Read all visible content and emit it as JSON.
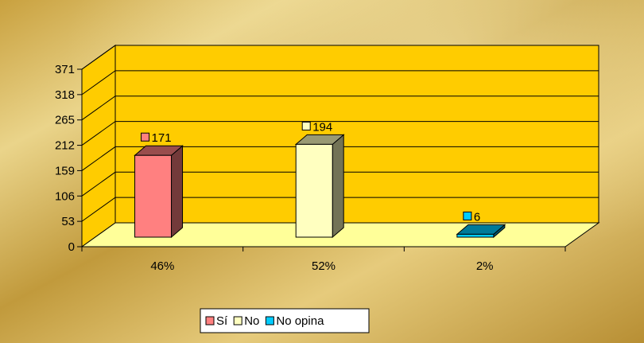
{
  "chart_data": {
    "type": "bar",
    "style": "3d-column",
    "categories": [
      "46%",
      "52%",
      "2%"
    ],
    "series": [
      {
        "name": "Sí",
        "category": "46%",
        "value": 171,
        "color": "#ff8080"
      },
      {
        "name": "No",
        "category": "52%",
        "value": 194,
        "color": "#ffffc0"
      },
      {
        "name": "No opina",
        "category": "2%",
        "value": 6,
        "color": "#00ccff"
      }
    ],
    "yticks": [
      0,
      53,
      106,
      159,
      212,
      265,
      318,
      371
    ],
    "ylim": [
      0,
      371
    ],
    "grid": true,
    "legend_position": "bottom",
    "colors": {
      "wall": "#ffcc00",
      "floor": "#ffff99",
      "background": "#d4af37"
    }
  }
}
